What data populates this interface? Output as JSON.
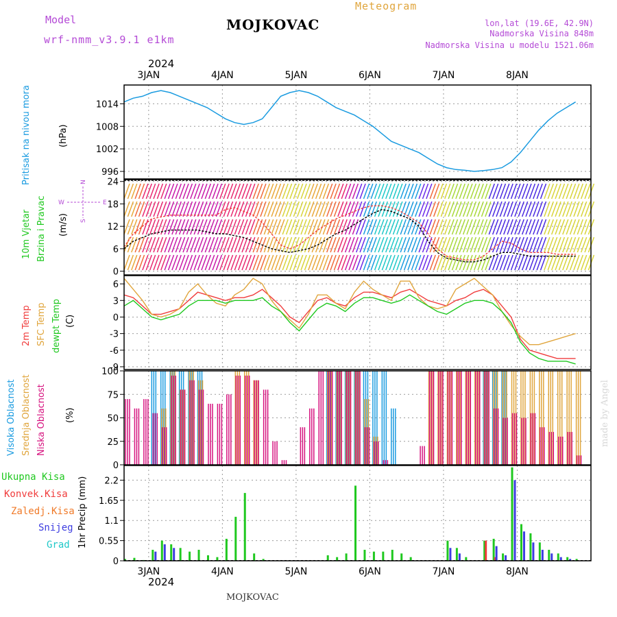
{
  "header": {
    "model_label": "Model",
    "model_name": "wrf-nmm_v3.9.1 e1km",
    "station": "MOJKOVAC",
    "product": "Meteogram",
    "lonlat": "lon,lat (19.6E, 42.9N)",
    "altitude": "Nadmorska Visina 848m",
    "model_altitude": "Nadmorska Visina u modelu 1521.06m",
    "watermark": "made by Angel",
    "footer_station": "MOJKOVAC",
    "year": "2024"
  },
  "colors": {
    "pressure": "#1a9be0",
    "temp2m": "#f03c3c",
    "sfc": "#e0a53c",
    "dew": "#1fc81f",
    "high_cloud": "#1a9be0",
    "mid_cloud": "#e0a53c",
    "low_cloud": "#d6117e",
    "total_precip": "#1fc81f",
    "conv_precip": "#f03c3c",
    "frozen_precip": "#f07a28",
    "snow": "#3c3ce0",
    "graupel": "#1fc8c8",
    "purple_text": "#b44ad6"
  },
  "chart_data": [
    {
      "type": "line",
      "panel": "pressure",
      "ylabel": [
        "Pritisak na nivou mora",
        "(hPa)"
      ],
      "yticks": [
        996,
        1002,
        1008,
        1014
      ],
      "ylim": [
        994,
        1019
      ],
      "x_days": [
        "3JAN",
        "4JAN",
        "5JAN",
        "6JAN",
        "7JAN",
        "8JAN"
      ],
      "x": [
        0,
        3,
        6,
        9,
        12,
        15,
        18,
        21,
        24,
        27,
        30,
        33,
        36,
        39,
        42,
        45,
        48,
        51,
        54,
        57,
        60,
        63,
        66,
        69,
        72,
        75,
        78,
        81,
        84,
        87,
        90,
        93,
        96,
        99,
        102,
        105,
        108,
        111,
        114,
        117,
        120,
        123,
        126,
        129,
        132,
        135,
        138,
        141,
        144,
        147
      ],
      "values": [
        1014.5,
        1015.5,
        1016,
        1017,
        1017.5,
        1017,
        1016,
        1015,
        1014,
        1013,
        1011.5,
        1010,
        1009,
        1008.5,
        1009,
        1010,
        1013,
        1016,
        1017,
        1017.5,
        1017,
        1016,
        1014.5,
        1013,
        1012,
        1011,
        1009.5,
        1008,
        1006,
        1004,
        1003,
        1002,
        1001,
        999.5,
        998,
        997,
        996.5,
        996.3,
        996,
        996.2,
        996.5,
        997,
        998.5,
        1001,
        1004,
        1007,
        1009.5,
        1011.5,
        1013,
        1014.5
      ],
      "series": [
        {
          "name": "Pritisak na nivou mora"
        }
      ]
    },
    {
      "type": "line",
      "panel": "wind",
      "ylabel": [
        "10m Vjetar",
        "Brzina i Pravac",
        "(m/s)"
      ],
      "yticks": [
        0,
        6,
        12,
        18,
        24
      ],
      "ylim": [
        -1,
        24.5
      ],
      "compass": [
        "N",
        "E",
        "S",
        "W"
      ],
      "x": [
        0,
        3,
        6,
        9,
        12,
        15,
        18,
        21,
        24,
        27,
        30,
        33,
        36,
        39,
        42,
        45,
        48,
        51,
        54,
        57,
        60,
        63,
        66,
        69,
        72,
        75,
        78,
        81,
        84,
        87,
        90,
        93,
        96,
        99,
        102,
        105,
        108,
        111,
        114,
        117,
        120,
        123,
        126,
        129,
        132,
        135,
        138,
        141,
        144,
        147
      ],
      "series": [
        {
          "name": "speed",
          "values": [
            6,
            8,
            9,
            10,
            10.5,
            11,
            11,
            11,
            11,
            10.5,
            10,
            10,
            9.5,
            9,
            8,
            7,
            6,
            5.5,
            5,
            5.5,
            6,
            7,
            8.5,
            10,
            11,
            12.5,
            14,
            15.5,
            16.5,
            16,
            15,
            14,
            12,
            8,
            5,
            3.5,
            3,
            2.5,
            2.5,
            3,
            4,
            5,
            5,
            4.5,
            4,
            4,
            4,
            4,
            4,
            4
          ]
        },
        {
          "name": "gust",
          "values": [
            6.5,
            10,
            12,
            14,
            14.5,
            15,
            15,
            15,
            15,
            15,
            15,
            16.5,
            17,
            16,
            15,
            13,
            10,
            7,
            6,
            7,
            9,
            11,
            12.5,
            14,
            15,
            16,
            17,
            17.5,
            17.5,
            17,
            16,
            14.5,
            13,
            10,
            6,
            4,
            3.5,
            3,
            3,
            4,
            6,
            8,
            7.5,
            6,
            5,
            5,
            5,
            4.5,
            4.5,
            4.5
          ]
        }
      ]
    },
    {
      "type": "line",
      "panel": "temperature",
      "ylabel": [
        "2m Temp",
        "SFC Temp",
        "dewpt Temp",
        "(C)"
      ],
      "yticks": [
        -9,
        -6,
        -3,
        0,
        3,
        6
      ],
      "ylim": [
        -9.5,
        7.5
      ],
      "x": [
        0,
        3,
        6,
        9,
        12,
        15,
        18,
        21,
        24,
        27,
        30,
        33,
        36,
        39,
        42,
        45,
        48,
        51,
        54,
        57,
        60,
        63,
        66,
        69,
        72,
        75,
        78,
        81,
        84,
        87,
        90,
        93,
        96,
        99,
        102,
        105,
        108,
        111,
        114,
        117,
        120,
        123,
        126,
        129,
        132,
        135,
        138,
        141,
        144,
        147
      ],
      "series": [
        {
          "name": "2m Temp",
          "values": [
            4,
            3.5,
            2,
            0.5,
            0.5,
            1,
            1.5,
            3,
            4.5,
            4,
            3.5,
            3,
            3.5,
            3.5,
            4,
            5,
            3.5,
            2,
            0,
            -1,
            1,
            3,
            3.5,
            2.5,
            2,
            3.5,
            4.5,
            4.5,
            4,
            3.5,
            4.5,
            5,
            4,
            3,
            2.5,
            2,
            3,
            3.5,
            4.5,
            5,
            4,
            2,
            0,
            -4,
            -6,
            -6.5,
            -7,
            -7.5,
            -7.5,
            -7.5
          ]
        },
        {
          "name": "SFC Temp",
          "values": [
            7,
            5,
            3,
            0.5,
            0,
            0.5,
            1.5,
            4.5,
            6,
            4,
            2.5,
            2,
            4,
            5,
            7,
            6,
            3,
            1,
            -0.5,
            -2,
            0.5,
            4,
            4,
            2.5,
            1.5,
            4.5,
            6.5,
            5,
            4,
            3,
            6.5,
            6.5,
            3.5,
            2,
            1.5,
            2,
            5,
            6,
            7,
            5.5,
            4,
            1,
            -1.5,
            -3.5,
            -5,
            -5,
            -4.5,
            -4,
            -3.5,
            -3
          ]
        },
        {
          "name": "dewpt Temp",
          "values": [
            2,
            3,
            1.5,
            0,
            -0.5,
            0,
            0.5,
            2,
            3,
            3,
            3,
            2.5,
            3,
            3,
            3,
            3.5,
            2,
            1,
            -1,
            -2.5,
            -0.5,
            1.5,
            2.5,
            2,
            1,
            2.5,
            3.5,
            3.5,
            3,
            2.5,
            3,
            4,
            3,
            2,
            1,
            0.5,
            1.5,
            2.5,
            3,
            3,
            2.5,
            1,
            -1,
            -4.5,
            -6.5,
            -7.5,
            -8,
            -8,
            -8,
            -8.5
          ]
        }
      ]
    },
    {
      "type": "bar",
      "panel": "clouds",
      "ylabel": [
        "Visoka Oblacnost",
        "Srednja Oblacnost",
        "Niska Oblacnost",
        "(%)"
      ],
      "yticks": [
        0,
        25,
        50,
        75,
        100
      ],
      "ylim": [
        0,
        100
      ],
      "x": [
        0,
        3,
        6,
        9,
        12,
        15,
        18,
        21,
        24,
        27,
        30,
        33,
        36,
        39,
        42,
        45,
        48,
        51,
        54,
        57,
        60,
        63,
        66,
        69,
        72,
        75,
        78,
        81,
        84,
        87,
        90,
        93,
        96,
        99,
        102,
        105,
        108,
        111,
        114,
        117,
        120,
        123,
        126,
        129,
        132,
        135,
        138,
        141,
        144,
        147
      ],
      "series": [
        {
          "name": "Visoka Oblacnost",
          "values": [
            0,
            0,
            0,
            100,
            100,
            100,
            100,
            100,
            100,
            0,
            0,
            0,
            0,
            0,
            0,
            0,
            0,
            0,
            0,
            0,
            0,
            0,
            100,
            100,
            100,
            100,
            100,
            100,
            100,
            60,
            0,
            0,
            0,
            0,
            0,
            0,
            0,
            0,
            0,
            100,
            100,
            100,
            0,
            0,
            0,
            0,
            0,
            0,
            0,
            0
          ]
        },
        {
          "name": "Srednja Oblacnost",
          "values": [
            0,
            0,
            0,
            0,
            60,
            100,
            80,
            100,
            90,
            0,
            0,
            0,
            100,
            100,
            90,
            0,
            0,
            0,
            0,
            0,
            0,
            0,
            100,
            100,
            100,
            100,
            70,
            30,
            0,
            0,
            0,
            0,
            0,
            100,
            100,
            100,
            100,
            100,
            100,
            100,
            100,
            100,
            100,
            100,
            100,
            100,
            100,
            100,
            100,
            100
          ]
        },
        {
          "name": "Niska Oblacnost",
          "values": [
            70,
            60,
            70,
            55,
            40,
            95,
            80,
            90,
            80,
            65,
            65,
            75,
            95,
            95,
            90,
            80,
            25,
            5,
            0,
            40,
            60,
            100,
            100,
            100,
            100,
            100,
            40,
            25,
            5,
            0,
            0,
            0,
            20,
            100,
            100,
            100,
            100,
            100,
            100,
            100,
            60,
            50,
            55,
            50,
            55,
            40,
            35,
            30,
            35,
            10
          ]
        }
      ]
    },
    {
      "type": "bar",
      "panel": "precipitation",
      "ylabel": [
        "1hr Precip (mm)"
      ],
      "legend": [
        "Ukupna Kisa",
        "Konvek.Kisa",
        "Zaledj.Kisa",
        "Snijeg",
        "Grad"
      ],
      "yticks": [
        0,
        0.55,
        1.1,
        1.65,
        2.2
      ],
      "ylim": [
        0,
        2.6
      ],
      "x": [
        0,
        3,
        6,
        9,
        12,
        15,
        18,
        21,
        24,
        27,
        30,
        33,
        36,
        39,
        42,
        45,
        48,
        51,
        54,
        57,
        60,
        63,
        66,
        69,
        72,
        75,
        78,
        81,
        84,
        87,
        90,
        93,
        96,
        99,
        102,
        105,
        108,
        111,
        114,
        117,
        120,
        123,
        126,
        129,
        132,
        135,
        138,
        141,
        144,
        147
      ],
      "series": [
        {
          "name": "Ukupna Kisa",
          "values": [
            0.05,
            0.08,
            0.02,
            0.3,
            0.55,
            0.45,
            0.35,
            0.25,
            0.3,
            0.15,
            0.1,
            0.6,
            1.2,
            1.85,
            0.2,
            0.05,
            0,
            0,
            0,
            0,
            0,
            0,
            0.15,
            0.1,
            0.2,
            2.05,
            0.3,
            0.25,
            0.25,
            0.3,
            0.2,
            0.1,
            0,
            0,
            0,
            0.55,
            0.35,
            0.1,
            0,
            0.55,
            0.6,
            0.2,
            2.55,
            1.0,
            0.75,
            0.5,
            0.3,
            0.2,
            0.1,
            0.05
          ]
        },
        {
          "name": "Konvek.Kisa",
          "values": [
            0,
            0,
            0,
            0,
            0,
            0,
            0,
            0,
            0,
            0,
            0,
            0,
            0,
            0,
            0,
            0,
            0,
            0,
            0,
            0,
            0,
            0,
            0,
            0,
            0,
            0,
            0,
            0,
            0,
            0,
            0,
            0,
            0,
            0,
            0,
            0,
            0,
            0,
            0,
            0.55,
            0.1,
            0,
            0,
            0,
            0,
            0,
            0,
            0,
            0,
            0
          ]
        },
        {
          "name": "Snijeg",
          "values": [
            0,
            0,
            0,
            0.25,
            0.45,
            0.35,
            0,
            0,
            0,
            0,
            0,
            0,
            0,
            0,
            0,
            0,
            0,
            0,
            0,
            0,
            0,
            0,
            0,
            0,
            0,
            0,
            0,
            0,
            0,
            0,
            0,
            0,
            0,
            0,
            0,
            0.35,
            0.2,
            0,
            0,
            0,
            0.4,
            0.15,
            2.2,
            0.8,
            0.5,
            0.3,
            0.2,
            0.1,
            0.05,
            0
          ]
        }
      ]
    }
  ]
}
